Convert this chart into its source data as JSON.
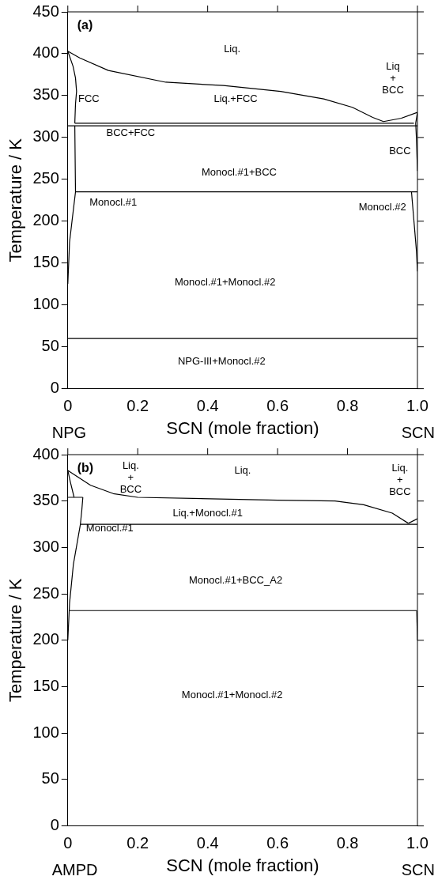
{
  "chart_data": [
    {
      "type": "line",
      "title": "(a)",
      "xlabel": "SCN (mole fraction)",
      "ylabel": "Temperature / K",
      "xlim": [
        0,
        1
      ],
      "xticks": [
        0,
        0.2,
        0.4,
        0.6,
        0.8,
        {
          "value": 1,
          "label": "1.0"
        }
      ],
      "ylim": [
        0,
        450
      ],
      "yticks": [
        0,
        50,
        100,
        150,
        200,
        250,
        300,
        350,
        400,
        450
      ],
      "marker": "none",
      "line_style": "solid",
      "series": [
        {
          "color": "#000000",
          "x": [
            0,
            0.034,
            0.116,
            0.28,
            0.445,
            0.609,
            0.732,
            0.814,
            0.872,
            0.903
          ],
          "values": [
            403,
            395,
            380,
            366,
            362,
            355,
            346,
            336,
            324,
            319
          ]
        },
        {
          "color": "#000000",
          "x": [
            0.903,
            0.954,
            1
          ],
          "values": [
            319,
            323,
            330
          ]
        },
        {
          "color": "#000000",
          "x": [
            0,
            0.015,
            0.022,
            0.025,
            0.022,
            0.02
          ],
          "values": [
            403,
            385,
            371,
            355,
            340,
            317
          ]
        },
        {
          "color": "#000000",
          "x": [
            0.02,
            0.99
          ],
          "values": [
            317,
            317
          ]
        },
        {
          "color": "#000000",
          "x": [
            0,
            1
          ],
          "values": [
            314,
            314
          ]
        },
        {
          "color": "#000000",
          "x": [
            1,
            0.995,
            0.997,
            1
          ],
          "values": [
            330,
            317,
            300,
            260
          ]
        },
        {
          "color": "#000000",
          "x": [
            0.02,
            0.022,
            0.012,
            0.005,
            0
          ],
          "values": [
            314,
            235,
            200,
            175,
            125
          ]
        },
        {
          "color": "#000000",
          "x": [
            0.022,
            1
          ],
          "values": [
            235,
            235
          ]
        },
        {
          "color": "#000000",
          "x": [
            0.983,
            0.99,
            0.997,
            1
          ],
          "values": [
            235,
            200,
            165,
            140
          ]
        },
        {
          "color": "#000000",
          "x": [
            0,
            1
          ],
          "values": [
            60,
            60
          ]
        }
      ],
      "annotations": [
        "Liq.",
        "Liq.+FCC",
        "FCC",
        "BCC+FCC",
        "Monocl.#1+BCC",
        "Monocl.#1",
        "Monocl.#2",
        "BCC",
        "Liq\n+\nBCC",
        "Monocl.#1+Monocl.#2",
        "NPG-III+Monocl.#2",
        "NPG",
        "SCN"
      ]
    },
    {
      "type": "line",
      "title": "(b)",
      "xlabel": "SCN (mole fraction)",
      "ylabel": "Temperature / K",
      "xlim": [
        0,
        1
      ],
      "xticks": [
        0,
        0.2,
        0.4,
        0.6,
        0.8,
        {
          "value": 1,
          "label": "1.0"
        }
      ],
      "ylim": [
        0,
        400
      ],
      "yticks": [
        0,
        50,
        100,
        150,
        200,
        250,
        300,
        350,
        400
      ],
      "marker": "none",
      "line_style": "solid",
      "series": [
        {
          "color": "#000000",
          "x": [
            0,
            0.065,
            0.13,
            0.2,
            0.6,
            0.764,
            0.846,
            0.928,
            0.974
          ],
          "values": [
            383,
            367,
            358,
            354,
            351,
            350,
            346,
            337,
            326
          ]
        },
        {
          "color": "#000000",
          "x": [
            0.974,
            1
          ],
          "values": [
            326,
            331
          ]
        },
        {
          "color": "#000000",
          "x": [
            0,
            0.007,
            0.018
          ],
          "values": [
            383,
            371,
            354
          ]
        },
        {
          "color": "#000000",
          "x": [
            0,
            0.043
          ],
          "values": [
            354,
            354
          ]
        },
        {
          "color": "#000000",
          "x": [
            0.043,
            0.04,
            0.036,
            0.016,
            0.005,
            0
          ],
          "values": [
            354,
            340,
            325,
            282,
            240,
            200
          ]
        },
        {
          "color": "#000000",
          "x": [
            0.036,
            1
          ],
          "values": [
            325,
            325
          ]
        },
        {
          "color": "#000000",
          "x": [
            0.003,
            0.998
          ],
          "values": [
            232,
            232
          ]
        },
        {
          "color": "#000000",
          "x": [
            0.998,
            1
          ],
          "values": [
            232,
            200
          ]
        }
      ],
      "annotations": [
        "Liq.",
        "Liq.\n+\nBCC",
        "Liq.\n+\nBCC",
        "Liq.+Monocl.#1",
        "Monocl.#1",
        "Monocl.#1+BCC_A2",
        "Monocl.#1+Monocl.#2",
        "AMPD",
        "SCN"
      ]
    }
  ]
}
